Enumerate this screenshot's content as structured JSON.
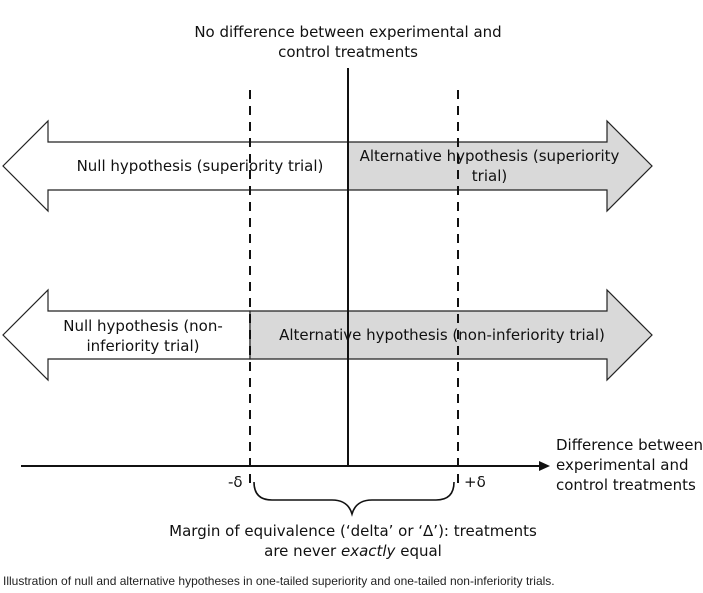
{
  "top_label": {
    "line1": "No difference between experimental and",
    "line2": "control treatments"
  },
  "superiority": {
    "null_label": "Null hypothesis (superiority trial)",
    "alt_line1": "Alternative hypothesis (superiority",
    "alt_line2": "trial)"
  },
  "non_inferiority": {
    "null_line1": "Null hypothesis (non-",
    "null_line2": "inferiority trial)",
    "alt_label": "Alternative hypothesis (non-inferiority trial)"
  },
  "axis": {
    "label_line1": "Difference between",
    "label_line2": "experimental and",
    "label_line3": "control treatments",
    "minus_delta": "-δ",
    "plus_delta": "+δ"
  },
  "margin": {
    "line1": "Margin of equivalence (‘delta’ or ‘Δ’): treatments",
    "line2_pre": "are never ",
    "line2_em": "exactly",
    "line2_post": " equal"
  },
  "caption": "Illustration of null and alternative hypotheses in one-tailed superiority and one-tailed non-inferiority trials.",
  "colors": {
    "arrow_fill_white": "#ffffff",
    "arrow_fill_grey": "#d9d9d9",
    "stroke": "#222222"
  }
}
